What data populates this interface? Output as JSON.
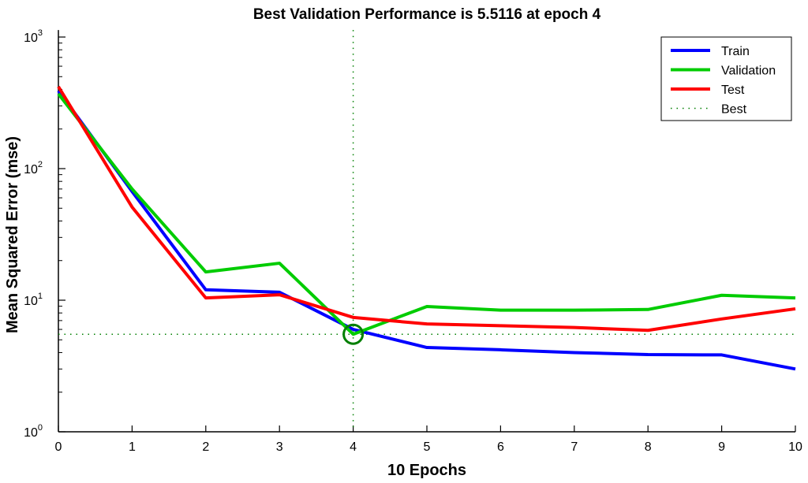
{
  "chart_data": {
    "type": "line",
    "title": "Best Validation Performance is 5.5116 at epoch 4",
    "xlabel": "10 Epochs",
    "ylabel": "Mean Squared Error  (mse)",
    "xlim": [
      0,
      10
    ],
    "ylim": [
      1,
      1130
    ],
    "yscale": "log",
    "x": [
      0,
      1,
      2,
      3,
      4,
      5,
      6,
      7,
      8,
      9,
      10
    ],
    "xticks": [
      "0",
      "1",
      "2",
      "3",
      "4",
      "5",
      "6",
      "7",
      "8",
      "9",
      "10"
    ],
    "yticks": [
      {
        "value": 1,
        "base": "10",
        "exp": "0"
      },
      {
        "value": 10,
        "base": "10",
        "exp": "1"
      },
      {
        "value": 100,
        "base": "10",
        "exp": "2"
      },
      {
        "value": 1000,
        "base": "10",
        "exp": "3"
      }
    ],
    "series": [
      {
        "name": "Train",
        "color": "#0000ff",
        "values": [
          390,
          67,
          12.0,
          11.5,
          6.0,
          4.37,
          4.2,
          4.0,
          3.86,
          3.84,
          3.0
        ]
      },
      {
        "name": "Validation",
        "color": "#00cc00",
        "values": [
          370,
          70,
          16.4,
          19.1,
          5.5116,
          8.96,
          8.4,
          8.4,
          8.5,
          10.9,
          10.4
        ]
      },
      {
        "name": "Test",
        "color": "#ff0000",
        "values": [
          420,
          51,
          10.4,
          11.0,
          7.4,
          6.6,
          6.4,
          6.2,
          5.9,
          7.2,
          8.6
        ]
      }
    ],
    "best": {
      "name": "Best",
      "epoch": 4,
      "value": 5.5116,
      "color": "#007f00"
    },
    "legend_position": "top-right",
    "grid": false
  }
}
